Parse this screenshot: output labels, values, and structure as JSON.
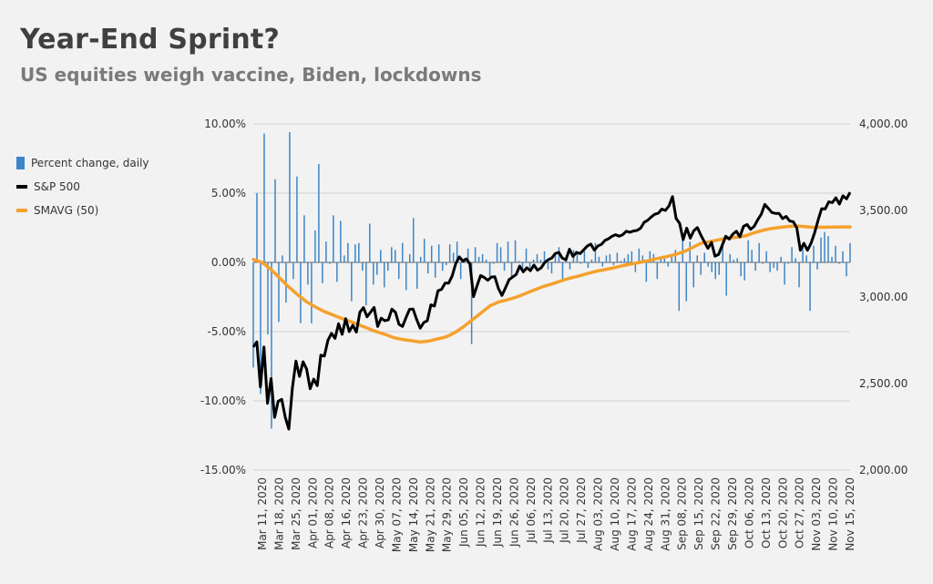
{
  "title": "Year-End Sprint?",
  "subtitle": "US equities weigh vaccine, Biden, lockdowns",
  "colors": {
    "bars": "#3d85c6",
    "sp500": "#000000",
    "smavg": "#f4a12d",
    "grid": "#d0d0d0",
    "zero": "#666666"
  },
  "legend": [
    {
      "label": "Percent change, daily",
      "type": "bar",
      "color": "#3d85c6"
    },
    {
      "label": "S&P 500",
      "type": "line",
      "color": "#000000"
    },
    {
      "label": "SMAVG (50)",
      "type": "line",
      "color": "#f4a12d"
    }
  ],
  "chart_data": {
    "type": "bar+line",
    "grid": true,
    "legend_position": "left",
    "x_tick_labels": [
      "Mar 11, 2020",
      "Mar 18, 2020",
      "Mar 25, 2020",
      "Apr 01, 2020",
      "Apr 08, 2020",
      "Apr 16, 2020",
      "Apr 23, 2020",
      "Apr 30, 2020",
      "May 07, 2020",
      "May 14, 2020",
      "May 21, 2020",
      "May 29, 2020",
      "Jun 05, 2020",
      "Jun 12, 2020",
      "Jun 19, 2020",
      "Jun 26, 2020",
      "Jul 06, 2020",
      "Jul 13, 2020",
      "Jul 20, 2020",
      "Jul 27, 2020",
      "Aug 03, 2020",
      "Aug 10, 2020",
      "Aug 17, 2020",
      "Aug 24, 2020",
      "Aug 31, 2020",
      "Sep 08, 2020",
      "Sep 15, 2020",
      "Sep 22, 2020",
      "Sep 29, 2020",
      "Oct 06, 2020",
      "Oct 13, 2020",
      "Oct 20, 2020",
      "Oct 27, 2020",
      "Nov 03, 2020",
      "Nov 10, 2020",
      "Nov 15, 2020"
    ],
    "y_left": {
      "ticks": [
        "10.00%",
        "5.00%",
        "0.00%",
        "-5.00%",
        "-10.00%",
        "-15.00%"
      ],
      "range": [
        -15,
        10
      ]
    },
    "y_right": {
      "ticks": [
        "4,000.00",
        "3,500.00",
        "3,000.00",
        "2,500.00",
        "2,000.00"
      ],
      "range": [
        2000,
        4000
      ]
    },
    "series": [
      {
        "name": "Percent change, daily",
        "axis": "left",
        "type": "bar",
        "values": [
          -7.6,
          5.0,
          -9.5,
          9.3,
          -5.2,
          -12.0,
          6.0,
          -4.3,
          0.5,
          -2.9,
          9.4,
          -1.2,
          6.2,
          -4.4,
          3.4,
          -1.6,
          -4.4,
          2.3,
          7.1,
          -1.5,
          1.5,
          -0.1,
          3.4,
          -1.4,
          3.0,
          0.5,
          1.4,
          -2.8,
          1.3,
          1.4,
          -0.6,
          -3.1,
          2.8,
          -1.6,
          -0.9,
          0.9,
          -1.8,
          -0.6,
          1.1,
          0.9,
          -1.2,
          1.4,
          -2.0,
          0.6,
          3.2,
          -1.9,
          0.4,
          1.7,
          -0.8,
          1.2,
          -1.1,
          1.3,
          -0.6,
          -0.2,
          1.3,
          0.7,
          1.5,
          -1.2,
          0.3,
          1.0,
          -5.9,
          1.1,
          0.4,
          0.6,
          0.2,
          -1.0,
          -0.1,
          1.4,
          1.1,
          -0.6,
          1.5,
          -1.2,
          1.6,
          0.1,
          -0.5,
          1.0,
          -0.4,
          0.2,
          0.6,
          0.2,
          0.8,
          -0.5,
          -0.8,
          0.7,
          1.1,
          -1.2,
          0.3,
          -0.5,
          0.9,
          0.7,
          -0.1,
          0.8,
          -0.4,
          0.2,
          1.4,
          0.4,
          -0.3,
          0.5,
          0.6,
          -0.2,
          0.7,
          0.1,
          0.3,
          0.6,
          0.8,
          -0.7,
          1.0,
          0.5,
          -1.4,
          0.8,
          0.6,
          -1.2,
          0.4,
          0.3,
          -0.3,
          0.6,
          0.9,
          -3.5,
          2.0,
          -2.8,
          1.5,
          -1.8,
          0.5,
          -0.9,
          0.7,
          -0.3,
          -0.7,
          -1.2,
          -0.9,
          1.4,
          -2.4,
          0.6,
          0.2,
          0.3,
          -1.0,
          -1.3,
          1.6,
          0.9,
          -0.6,
          1.4,
          -0.1,
          0.8,
          -0.7,
          -0.4,
          -0.6,
          0.4,
          -1.6,
          -0.1,
          1.1,
          0.3,
          -1.8,
          1.2,
          0.5,
          -3.5,
          1.2,
          -0.5,
          1.8,
          2.2,
          1.9,
          0.4,
          1.2,
          -0.1,
          0.8,
          -1.0,
          1.4
        ]
      },
      {
        "name": "S&P 500",
        "axis": "right",
        "type": "line",
        "values": [
          2711,
          2741,
          2480,
          2711,
          2386,
          2529,
          2305,
          2398,
          2409,
          2305,
          2237,
          2475,
          2630,
          2541,
          2626,
          2584,
          2470,
          2526,
          2488,
          2664,
          2659,
          2750,
          2790,
          2761,
          2846,
          2784,
          2875,
          2800,
          2837,
          2797,
          2912,
          2939,
          2886,
          2912,
          2940,
          2830,
          2878,
          2863,
          2868,
          2930,
          2912,
          2842,
          2830,
          2881,
          2929,
          2930,
          2870,
          2820,
          2852,
          2863,
          2955,
          2948,
          3036,
          3044,
          3080,
          3080,
          3122,
          3193,
          3232,
          3207,
          3220,
          3190,
          3002,
          3066,
          3124,
          3113,
          3097,
          3115,
          3117,
          3050,
          3009,
          3053,
          3100,
          3115,
          3130,
          3179,
          3145,
          3169,
          3152,
          3185,
          3155,
          3168,
          3198,
          3215,
          3225,
          3251,
          3258,
          3224,
          3215,
          3276,
          3235,
          3258,
          3251,
          3272,
          3294,
          3306,
          3271,
          3295,
          3304,
          3327,
          3337,
          3351,
          3360,
          3351,
          3360,
          3380,
          3374,
          3381,
          3385,
          3397,
          3431,
          3443,
          3462,
          3478,
          3484,
          3508,
          3500,
          3526,
          3580,
          3455,
          3426,
          3331,
          3398,
          3340,
          3383,
          3401,
          3357,
          3319,
          3281,
          3315,
          3236,
          3246,
          3298,
          3351,
          3335,
          3363,
          3380,
          3348,
          3408,
          3419,
          3391,
          3408,
          3446,
          3478,
          3535,
          3512,
          3488,
          3483,
          3483,
          3453,
          3465,
          3439,
          3435,
          3400,
          3270,
          3310,
          3270,
          3310,
          3370,
          3444,
          3510,
          3509,
          3550,
          3545,
          3573,
          3537,
          3585,
          3567,
          3605
        ]
      },
      {
        "name": "SMAVG (50)",
        "axis": "right",
        "type": "line",
        "values": [
          3217,
          3200,
          3160,
          3110,
          3060,
          3015,
          2975,
          2945,
          2918,
          2898,
          2878,
          2860,
          2840,
          2820,
          2800,
          2785,
          2765,
          2755,
          2748,
          2740,
          2745,
          2758,
          2770,
          2795,
          2830,
          2870,
          2910,
          2950,
          2972,
          2985,
          3000,
          3020,
          3040,
          3060,
          3075,
          3092,
          3108,
          3120,
          3135,
          3148,
          3158,
          3168,
          3180,
          3190,
          3200,
          3210,
          3222,
          3232,
          3245,
          3260,
          3285,
          3310,
          3320,
          3330,
          3340,
          3345,
          3352,
          3370,
          3385,
          3395,
          3402,
          3408,
          3410,
          3406,
          3402,
          3403,
          3404,
          3405,
          3405
        ]
      }
    ]
  }
}
